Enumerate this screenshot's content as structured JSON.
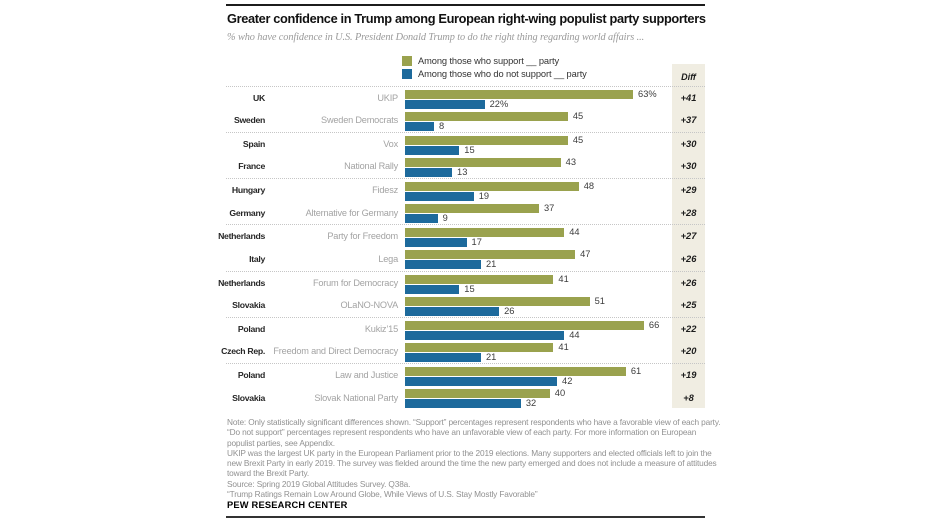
{
  "header": {
    "title": "Greater confidence in Trump among European right-wing populist party supporters",
    "subtitle": "% who have confidence in U.S. President Donald Trump to do the right thing regarding world affairs ..."
  },
  "legend": {
    "support_label": "Among those who support __ party",
    "not_support_label": "Among those who do not support __ party"
  },
  "diff_header": "Diff",
  "colors": {
    "support": "#9aa24e",
    "not_support": "#1d6a9c",
    "diff_bg": "#f0ede2"
  },
  "chart_data": {
    "type": "bar",
    "orientation": "horizontal",
    "value_unit": "percent",
    "xlim": [
      0,
      70
    ],
    "series": [
      "Among those who support __ party",
      "Among those who do not support __ party"
    ],
    "rows": [
      {
        "country": "UK",
        "party": "UKIP",
        "support": 63,
        "not_support": 22,
        "support_label": "63%",
        "not_support_label": "22%",
        "diff": "+41"
      },
      {
        "country": "Sweden",
        "party": "Sweden Democrats",
        "support": 45,
        "not_support": 8,
        "support_label": "45",
        "not_support_label": "8",
        "diff": "+37"
      },
      {
        "country": "Spain",
        "party": "Vox",
        "support": 45,
        "not_support": 15,
        "support_label": "45",
        "not_support_label": "15",
        "diff": "+30"
      },
      {
        "country": "France",
        "party": "National Rally",
        "support": 43,
        "not_support": 13,
        "support_label": "43",
        "not_support_label": "13",
        "diff": "+30"
      },
      {
        "country": "Hungary",
        "party": "Fidesz",
        "support": 48,
        "not_support": 19,
        "support_label": "48",
        "not_support_label": "19",
        "diff": "+29"
      },
      {
        "country": "Germany",
        "party": "Alternative for Germany",
        "support": 37,
        "not_support": 9,
        "support_label": "37",
        "not_support_label": "9",
        "diff": "+28"
      },
      {
        "country": "Netherlands",
        "party": "Party for Freedom",
        "support": 44,
        "not_support": 17,
        "support_label": "44",
        "not_support_label": "17",
        "diff": "+27"
      },
      {
        "country": "Italy",
        "party": "Lega",
        "support": 47,
        "not_support": 21,
        "support_label": "47",
        "not_support_label": "21",
        "diff": "+26"
      },
      {
        "country": "Netherlands",
        "party": "Forum for Democracy",
        "support": 41,
        "not_support": 15,
        "support_label": "41",
        "not_support_label": "15",
        "diff": "+26"
      },
      {
        "country": "Slovakia",
        "party": "OLaNO-NOVA",
        "support": 51,
        "not_support": 26,
        "support_label": "51",
        "not_support_label": "26",
        "diff": "+25"
      },
      {
        "country": "Poland",
        "party": "Kukiz’15",
        "support": 66,
        "not_support": 44,
        "support_label": "66",
        "not_support_label": "44",
        "diff": "+22"
      },
      {
        "country": "Czech Rep.",
        "party": "Freedom and Direct Democracy",
        "support": 41,
        "not_support": 21,
        "support_label": "41",
        "not_support_label": "21",
        "diff": "+20"
      },
      {
        "country": "Poland",
        "party": "Law and Justice",
        "support": 61,
        "not_support": 42,
        "support_label": "61",
        "not_support_label": "42",
        "diff": "+19"
      },
      {
        "country": "Slovakia",
        "party": "Slovak National Party",
        "support": 40,
        "not_support": 32,
        "support_label": "40",
        "not_support_label": "32",
        "diff": "+8"
      }
    ]
  },
  "notes": {
    "lines": [
      "Note: Only statistically significant differences shown. “Support” percentages represent respondents who have a favorable view of each party.",
      "“Do not support” percentages represent respondents who have an unfavorable view of each party. For more information on European",
      "populist parties, see Appendix.",
      "UKIP was the largest UK party in the European Parliament prior to the 2019 elections. Many supporters and elected officials left to join the",
      "new Brexit Party in early 2019. The survey was fielded around the time the new party emerged and does not include a measure of attitudes",
      "toward the Brexit Party.",
      "Source: Spring 2019 Global Attitudes Survey. Q38a.",
      "“Trump Ratings Remain Low Around Globe, While Views of U.S. Stay Mostly Favorable”"
    ]
  },
  "footer": {
    "brand": "PEW RESEARCH CENTER"
  }
}
